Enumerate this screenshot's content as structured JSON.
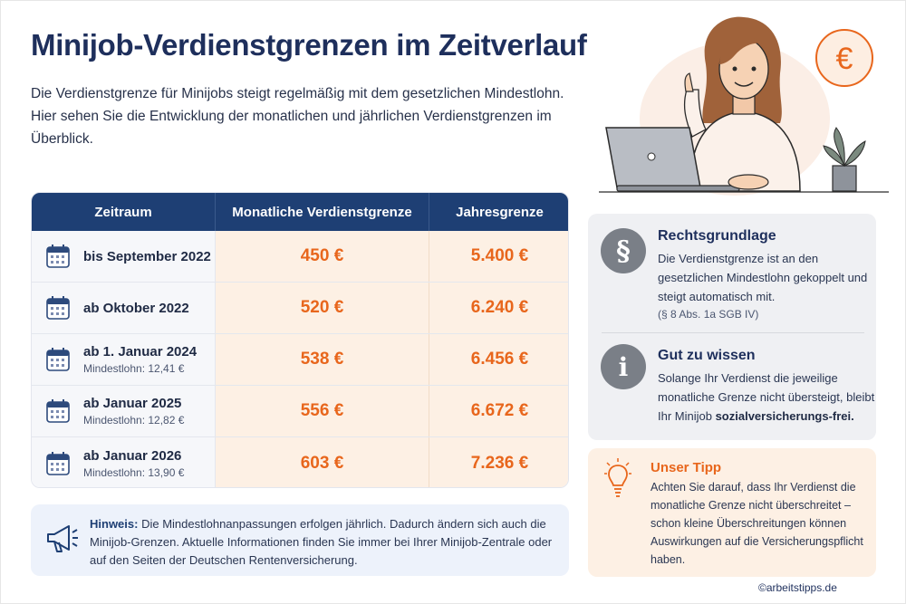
{
  "title": "Minijob-Verdienstgrenzen im Zeitverlauf",
  "intro": "Die Verdienstgrenze für Minijobs steigt regelmäßig mit dem gesetzlichen Mindestlohn. Hier sehen Sie die Entwicklung der monatlichen und jährlichen Verdienstgrenzen im Überblick.",
  "table": {
    "headers": [
      "Zeitraum",
      "Monatliche Verdienstgrenze",
      "Jahresgrenze"
    ],
    "rows": [
      {
        "period": "bis September 2022",
        "sub": "",
        "monthly": "450 €",
        "yearly": "5.400 €"
      },
      {
        "period": "ab Oktober 2022",
        "sub": "",
        "monthly": "520 €",
        "yearly": "6.240 €"
      },
      {
        "period": "ab 1. Januar 2024",
        "sub": "Mindestlohn: 12,41 €",
        "monthly": "538 €",
        "yearly": "6.456 €"
      },
      {
        "period": "ab Januar 2025",
        "sub": "Mindestlohn: 12,82 €",
        "monthly": "556 €",
        "yearly": "6.672 €"
      },
      {
        "period": "ab Januar 2026",
        "sub": "Mindestlohn: 13,90 €",
        "monthly": "603 €",
        "yearly": "7.236 €"
      }
    ]
  },
  "hinweis": {
    "label": "Hinweis:",
    "text": " Die Mindestlohnanpassungen erfolgen jährlich. Dadurch ändern sich auch die Minijob-Grenzen. Aktuelle Informationen finden Sie immer bei Ihrer Minijob-Zentrale oder auf den Seiten der Deutschen Rentenversicherung."
  },
  "rechtsgrundlage": {
    "icon_symbol": "§",
    "title": "Rechtsgrundlage",
    "text": "Die Verdienstgrenze ist an den gesetzlichen Mindestlohn gekoppelt und steigt automatisch mit.",
    "ref": "(§ 8 Abs. 1a SGB IV)"
  },
  "gut_zu_wissen": {
    "icon_symbol": "i",
    "title": "Gut zu wissen",
    "text": "Solange Ihr Verdienst die jeweilige monatliche Grenze nicht übersteigt, bleibt Ihr Minijob ",
    "bold": "sozialversicherungs-frei",
    "end": "."
  },
  "tipp": {
    "title": "Unser Tipp",
    "text": "Achten Sie darauf, dass Ihr Verdienst die monatliche Grenze nicht überschreitet – schon kleine Überschreitungen können Auswirkungen auf die Versicherungspflicht haben."
  },
  "illustration": {
    "euro_symbol": "€"
  },
  "footer": "©arbeitstipps.de",
  "colors": {
    "navy": "#1e3f74",
    "orange": "#e8661c",
    "peach": "#fdf0e4",
    "gray_panel": "#eff0f3"
  },
  "icons": [
    "calendar-icon",
    "megaphone-icon",
    "paragraph-icon",
    "info-icon",
    "lightbulb-icon",
    "euro-icon"
  ]
}
